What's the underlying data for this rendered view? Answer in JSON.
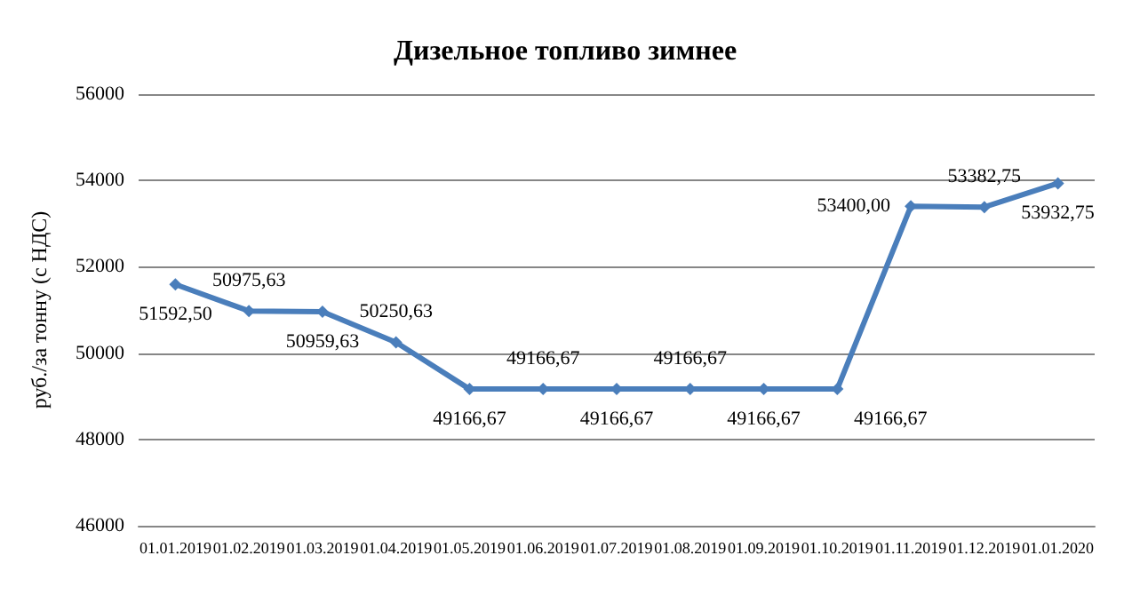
{
  "chart_data": {
    "type": "line",
    "title": "Дизельное топливо зимнее",
    "ylabel": "руб./за тонну (с НДС)",
    "categories": [
      "01.01.2019",
      "01.02.2019",
      "01.03.2019",
      "01.04.2019",
      "01.05.2019",
      "01.06.2019",
      "01.07.2019",
      "01.08.2019",
      "01.09.2019",
      "01.10.2019",
      "01.11.2019",
      "01.12.2019",
      "01.01.2020"
    ],
    "series": [
      {
        "color": "#4a7ebb",
        "values": [
          51592.5,
          50975.63,
          50959.63,
          50250.63,
          49166.67,
          49166.67,
          49166.67,
          49166.67,
          49166.67,
          49166.67,
          53400,
          53382.75,
          53932.75
        ],
        "value_labels": [
          "51592,50",
          "50975,63",
          "50959,63",
          "50250,63",
          "49166,67",
          "49166,67",
          "49166,67",
          "49166,67",
          "49166,67",
          "49166,67",
          "53400,00",
          "53382,75",
          "53932,75"
        ]
      }
    ],
    "ylim": [
      46000,
      56000
    ],
    "yticks": [
      46000,
      48000,
      50000,
      52000,
      54000,
      56000
    ],
    "grid": "y",
    "marker": "diamond",
    "line_style": "solid"
  }
}
